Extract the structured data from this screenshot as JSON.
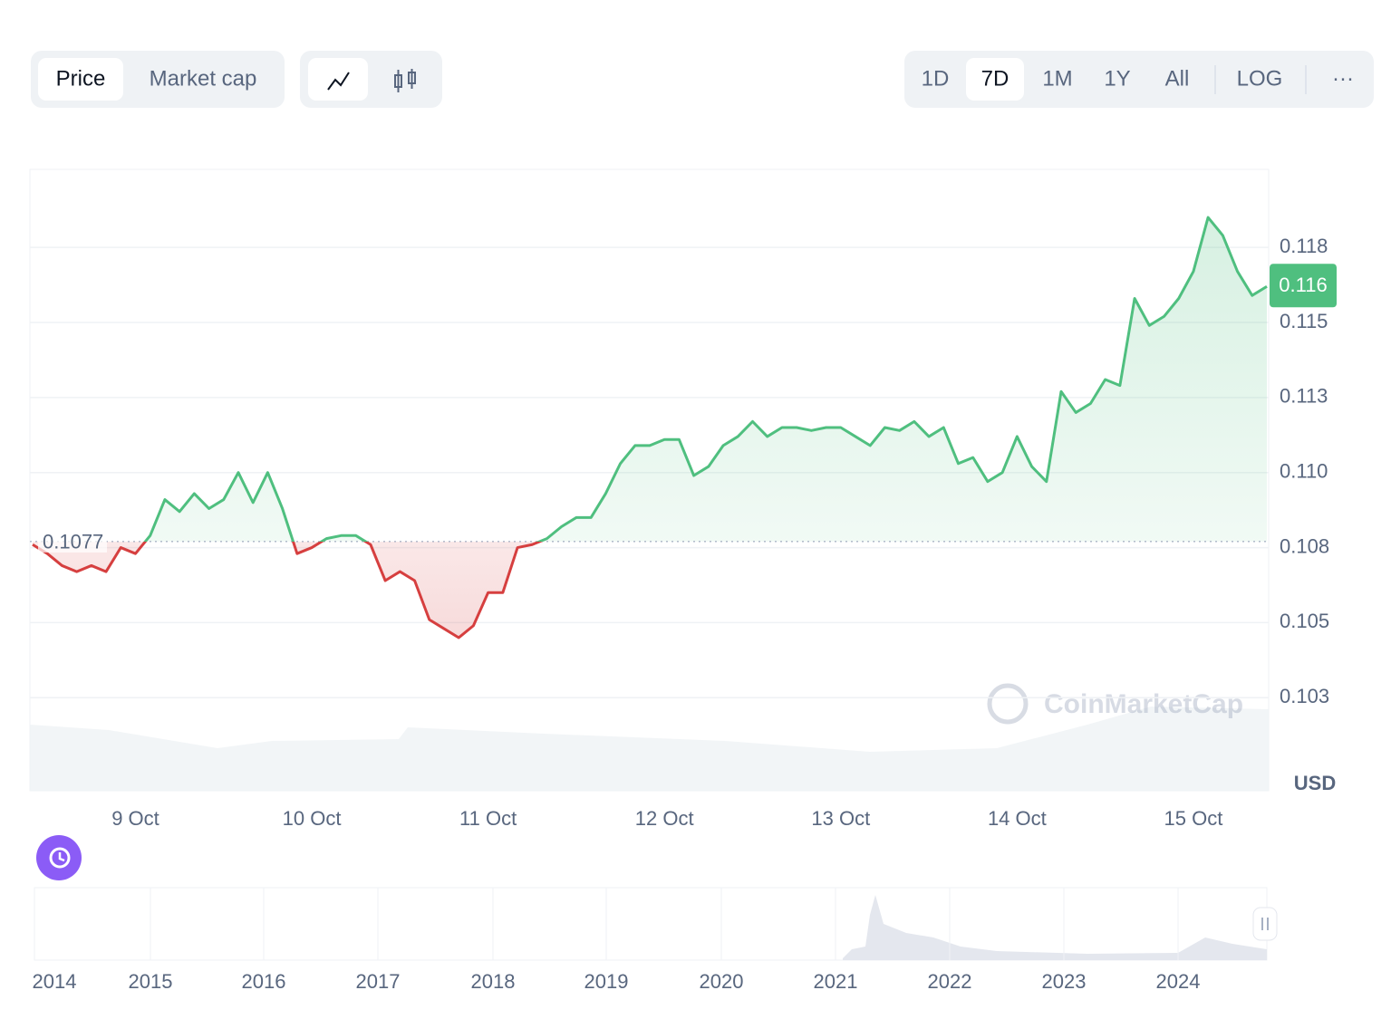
{
  "controls": {
    "metric_tabs": [
      "Price",
      "Market cap"
    ],
    "range_tabs": [
      "1D",
      "7D",
      "1M",
      "1Y",
      "All"
    ],
    "scale_toggle": "LOG",
    "more": "···"
  },
  "chart_data": {
    "type": "line",
    "categories": [
      null,
      null,
      null,
      null,
      null,
      null,
      null,
      "9 Oct",
      null,
      null,
      null,
      null,
      null,
      null,
      null,
      null,
      null,
      null,
      null,
      "10 Oct",
      null,
      null,
      null,
      null,
      null,
      null,
      null,
      null,
      null,
      null,
      null,
      "11 Oct",
      null,
      null,
      null,
      null,
      null,
      null,
      null,
      null,
      null,
      null,
      null,
      "12 Oct",
      null,
      null,
      null,
      null,
      null,
      null,
      null,
      null,
      null,
      null,
      null,
      "13 Oct",
      null,
      null,
      null,
      null,
      null,
      null,
      null,
      null,
      null,
      null,
      null,
      "14 Oct",
      null,
      null,
      null,
      null,
      null,
      null,
      null,
      null,
      null,
      null,
      null,
      "15 Oct",
      null,
      null,
      null,
      null,
      null
    ],
    "values": [
      0.1076,
      0.1073,
      0.1069,
      0.1067,
      0.1069,
      0.1067,
      0.1075,
      0.1073,
      0.1079,
      0.1091,
      0.1087,
      0.1093,
      0.1088,
      0.1091,
      0.11,
      0.109,
      0.11,
      0.1088,
      0.1073,
      0.1075,
      0.1078,
      0.1079,
      0.1079,
      0.1076,
      0.1064,
      0.1067,
      0.1064,
      0.1051,
      0.1048,
      0.1045,
      0.1049,
      0.106,
      0.106,
      0.1075,
      0.1076,
      0.1078,
      0.1082,
      0.1085,
      0.1085,
      0.1093,
      0.1103,
      0.1109,
      0.1109,
      0.1111,
      0.1111,
      0.1099,
      0.1102,
      0.1109,
      0.1112,
      0.1117,
      0.1112,
      0.1115,
      0.1115,
      0.1114,
      0.1115,
      0.1115,
      0.1112,
      0.1109,
      0.1115,
      0.1114,
      0.1117,
      0.1112,
      0.1115,
      0.1103,
      0.1105,
      0.1097,
      0.11,
      0.1112,
      0.1102,
      0.1097,
      0.1127,
      0.112,
      0.1123,
      0.1131,
      0.1129,
      0.1158,
      0.1149,
      0.1152,
      0.1158,
      0.1167,
      0.1185,
      0.1179,
      0.1167,
      0.1159,
      0.1162
    ],
    "baseline": 0.1077,
    "current_label": "0.116",
    "up_color": "#4fbf7f",
    "down_color": "#d63f3f",
    "ylim": [
      0.0994,
      0.1201
    ],
    "yticks": [
      {
        "value": 0.1025,
        "label": "0.103"
      },
      0.105,
      {
        "value": 0.1075,
        "label": "0.108"
      },
      {
        "value": 0.11,
        "label": "0.110"
      },
      {
        "value": 0.1125,
        "label": "0.113"
      },
      0.115,
      {
        "value": 0.1175,
        "label": "0.118"
      }
    ],
    "grid": true,
    "currency": "USD",
    "watermark": "CoinMarketCap"
  },
  "navigator": {
    "years": [
      "2014",
      "2015",
      "2016",
      "2017",
      "2018",
      "2019",
      "2020",
      "2021",
      "2022",
      "2023",
      "2024"
    ]
  }
}
